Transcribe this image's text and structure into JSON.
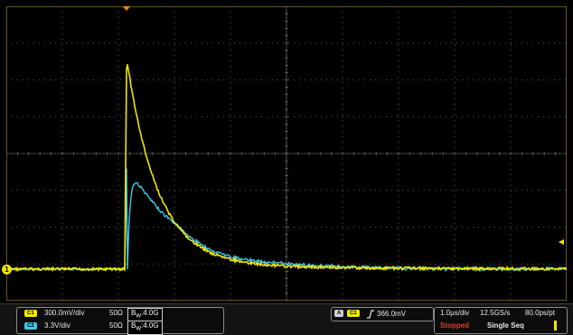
{
  "colors": {
    "ch1": "#f3e600",
    "ch2": "#3fc7e6",
    "grid": "#7a7a7a",
    "frame_border": "#8a6a2a",
    "trigger_marker": "#f08a10",
    "stopped": "#e23a2d"
  },
  "screen": {
    "ch1_ground_marker": "1",
    "trigger_position_icon": "triangle-down",
    "trigger_level_icon": "triangle-left"
  },
  "status": {
    "ch1": {
      "badge": "C1",
      "scale": "300.0mV/div",
      "impedance": "50Ω",
      "bandwidth_prefix": "B",
      "bandwidth_sub": "W",
      "bandwidth_value": ":4.0G"
    },
    "ch2": {
      "badge": "C2",
      "scale": "3.3V/div",
      "impedance": "50Ω",
      "bandwidth_prefix": "B",
      "bandwidth_sub": "W",
      "bandwidth_value": ":4.0G"
    },
    "trigger": {
      "mode_badge": "A",
      "source_badge": "C1",
      "slope_icon": "rising-edge",
      "level": "366.0mV"
    },
    "timebase": {
      "horizontal_scale": "1.0µs/div",
      "sample_rate": "12.5GS/s",
      "resolution": "80.0ps/pt"
    },
    "acquisition": {
      "state": "Stopped",
      "mode": "Single Seq"
    }
  }
}
